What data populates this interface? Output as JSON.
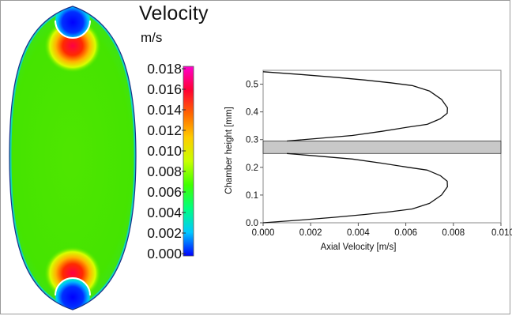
{
  "legend": {
    "title": "Velocity",
    "unit": "m/s",
    "ticks": [
      "0.018",
      "0.016",
      "0.014",
      "0.012",
      "0.010",
      "0.008",
      "0.006",
      "0.004",
      "0.002",
      "0.000"
    ],
    "colors": [
      "#0000ff",
      "#00c8ff",
      "#00ff80",
      "#40ff00",
      "#c8ff00",
      "#ffcc00",
      "#ff6600",
      "#ff0033",
      "#ff00cc"
    ]
  },
  "chart_data": {
    "type": "line",
    "xlabel": "Axial Velocity [m/s]",
    "ylabel": "Chamber height [mm]",
    "xlim": [
      0,
      0.01
    ],
    "ylim": [
      0,
      0.55
    ],
    "x_ticks": [
      "0.000",
      "0.002",
      "0.004",
      "0.006",
      "0.008",
      "0.010"
    ],
    "y_ticks": [
      "0.0",
      "0.1",
      "0.2",
      "0.3",
      "0.4",
      "0.5"
    ],
    "series": [
      {
        "x": [
          0.0,
          0.00159,
          0.00302,
          0.00428,
          0.00536,
          0.00627,
          0.007,
          0.0075,
          0.00775,
          0.00774,
          0.00745,
          0.0069,
          0.0061,
          0.005,
          0.00375,
          0.0024,
          0.001
        ],
        "y": [
          0.0,
          0.01,
          0.02,
          0.03,
          0.04,
          0.05,
          0.07,
          0.1,
          0.13,
          0.15,
          0.17,
          0.19,
          0.2,
          0.215,
          0.23,
          0.24,
          0.25
        ]
      },
      {
        "x": [
          0.001,
          0.0024,
          0.00375,
          0.005,
          0.0061,
          0.0069,
          0.00745,
          0.00774,
          0.00775,
          0.0075,
          0.007,
          0.00627,
          0.00536,
          0.00428,
          0.00302,
          0.00159,
          0.0
        ],
        "y": [
          0.295,
          0.305,
          0.315,
          0.33,
          0.345,
          0.355,
          0.375,
          0.395,
          0.415,
          0.445,
          0.475,
          0.495,
          0.505,
          0.515,
          0.525,
          0.535,
          0.545
        ]
      }
    ],
    "band": {
      "y": [
        0.25,
        0.295
      ],
      "fill": "#c8c8c8"
    }
  }
}
